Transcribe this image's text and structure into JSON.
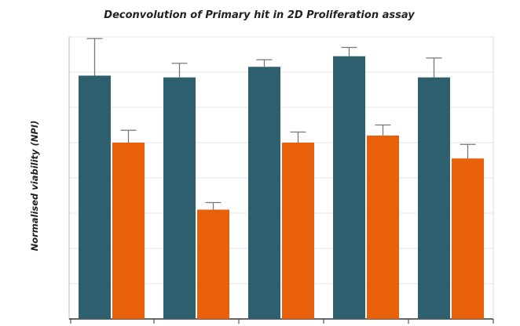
{
  "chart_data": {
    "type": "bar",
    "title": "Deconvolution of Primary hit in 2D Proliferation assay",
    "xlabel": "",
    "ylabel": "Normalised viability (NPI)",
    "ylim": [
      0,
      8
    ],
    "grid": true,
    "legend": "none",
    "categories": [
      "",
      "",
      "",
      "",
      ""
    ],
    "series": [
      {
        "color": "#2e5f6e",
        "values": [
          6.9,
          6.85,
          7.15,
          7.45,
          6.85
        ],
        "errors": [
          1.05,
          0.4,
          0.2,
          0.25,
          0.55
        ]
      },
      {
        "color": "#e8600a",
        "values": [
          5.0,
          3.1,
          5.0,
          5.2,
          4.55
        ],
        "errors": [
          0.35,
          0.2,
          0.3,
          0.3,
          0.4
        ]
      }
    ]
  }
}
